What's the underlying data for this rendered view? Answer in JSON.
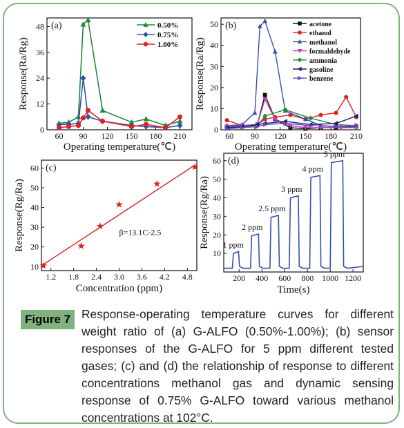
{
  "figure": {
    "label": "Figure 7",
    "caption": "Response-operating temperature curves for different weight ratio of (a) G-ALFO (0.50%-1.00%); (b) sensor responses of the G-ALFO for 5 ppm different tested gases; (c) and (d) the relationship of response to different concentrations methanol gas and dynamic sensing response of 0.75% G-ALFO toward various methanol concentrations at 102°C."
  },
  "chart_data": [
    {
      "panel": "(a)",
      "type": "line",
      "xlabel": "Operating temperature(℃)",
      "ylabel": "Response(Ra/Rg)",
      "xlim": [
        45,
        225
      ],
      "ylim": [
        0,
        52
      ],
      "xticks": [
        60,
        90,
        120,
        150,
        180,
        210
      ],
      "yticks": [
        0,
        12,
        24,
        36,
        48
      ],
      "legend_position": "top-right",
      "series": [
        {
          "name": "0.50%",
          "color": "#1e8a3a",
          "marker": "triangle-up",
          "x": [
            60,
            72,
            84,
            90,
            96,
            114,
            150,
            168,
            192,
            210
          ],
          "y": [
            3,
            3.5,
            6,
            49,
            51,
            9,
            3.5,
            5,
            2,
            4
          ]
        },
        {
          "name": "0.75%",
          "color": "#3050b0",
          "marker": "diamond",
          "x": [
            60,
            72,
            84,
            90,
            96,
            114,
            150,
            168,
            192,
            210
          ],
          "y": [
            2.5,
            2.5,
            3,
            24,
            6,
            4,
            2,
            1.5,
            1,
            2
          ]
        },
        {
          "name": "1.00%",
          "color": "#e02020",
          "marker": "circle",
          "x": [
            60,
            72,
            84,
            90,
            96,
            114,
            150,
            168,
            192,
            210
          ],
          "y": [
            1,
            1.5,
            2,
            5.5,
            9,
            4,
            1.5,
            2.5,
            1,
            6
          ]
        }
      ]
    },
    {
      "panel": "(b)",
      "type": "line",
      "xlabel": "Operating temperature(℃)",
      "ylabel": "Response(Ra/Rg)",
      "xlim": [
        50,
        215
      ],
      "ylim": [
        0,
        53
      ],
      "xticks": [
        60,
        90,
        120,
        150,
        180,
        210
      ],
      "yticks": [
        0,
        10,
        20,
        30,
        40,
        50
      ],
      "legend_position": "top-right",
      "series": [
        {
          "name": "acetone",
          "color": "#111111",
          "marker": "square",
          "x": [
            57,
            75,
            93,
            102,
            114,
            132,
            150,
            168,
            186,
            210
          ],
          "y": [
            1.5,
            2,
            2.5,
            16.5,
            5,
            1,
            0.5,
            1,
            1,
            1.5
          ]
        },
        {
          "name": "ethanol",
          "color": "#e02020",
          "marker": "circle",
          "x": [
            57,
            75,
            93,
            102,
            114,
            132,
            150,
            168,
            186,
            198,
            210
          ],
          "y": [
            4.5,
            2,
            2.5,
            5,
            6,
            7,
            5,
            7,
            8,
            15.5,
            6
          ]
        },
        {
          "name": "methanol",
          "color": "#3050b0",
          "marker": "triangle-up",
          "x": [
            57,
            75,
            90,
            96,
            102,
            114,
            126,
            150,
            168,
            192,
            210
          ],
          "y": [
            2,
            2.5,
            8,
            49,
            51.5,
            37,
            9,
            5,
            2,
            1.5,
            1.5
          ]
        },
        {
          "name": "formaldehyde",
          "color": "#c040c0",
          "marker": "triangle-down",
          "x": [
            57,
            75,
            93,
            102,
            114,
            132,
            150,
            168,
            192,
            210
          ],
          "y": [
            1.5,
            2,
            2.5,
            14.5,
            5,
            2,
            1,
            1,
            1,
            1
          ]
        },
        {
          "name": "ammonia",
          "color": "#1e8a3a",
          "marker": "diamond",
          "x": [
            57,
            75,
            93,
            102,
            126,
            156,
            186,
            210
          ],
          "y": [
            1,
            1.5,
            2,
            6.5,
            9.5,
            5.5,
            2.5,
            2
          ]
        },
        {
          "name": "gasoline",
          "color": "#1a1a6e",
          "marker": "triangle-left",
          "x": [
            57,
            75,
            93,
            102,
            126,
            156,
            186,
            210
          ],
          "y": [
            1,
            1.5,
            2.5,
            3,
            4,
            2.5,
            3,
            6.5
          ]
        },
        {
          "name": "benzene",
          "color": "#7040c0",
          "marker": "triangle-right",
          "x": [
            57,
            75,
            93,
            102,
            126,
            156,
            186,
            210
          ],
          "y": [
            0.5,
            1,
            1.5,
            2.5,
            3,
            2,
            1.5,
            2
          ]
        }
      ]
    },
    {
      "panel": "(c)",
      "type": "scatter",
      "xlabel": "Concentration (ppm)",
      "ylabel": "Response(Rg/Ra)",
      "xlim": [
        0.95,
        5.05
      ],
      "ylim": [
        8,
        64
      ],
      "xticks": [
        1.2,
        1.8,
        2.4,
        3.0,
        3.6,
        4.2,
        4.8
      ],
      "yticks": [
        10,
        20,
        30,
        40,
        50,
        60
      ],
      "fit_label": "β=13.1C-2.5",
      "x": [
        1,
        2,
        2.5,
        3,
        4,
        5
      ],
      "y": [
        10.5,
        20.5,
        30.5,
        41.5,
        52,
        60.5
      ],
      "fit": {
        "slope": 13.1,
        "intercept": -2.5
      }
    },
    {
      "panel": "(d)",
      "type": "line",
      "xlabel": "Time(s)",
      "ylabel": "Response(Rg/Ra)",
      "xlim": [
        65,
        1290
      ],
      "ylim": [
        0,
        64
      ],
      "xticks": [
        200,
        400,
        600,
        800,
        1000,
        1200
      ],
      "yticks": [
        10,
        20,
        30,
        40,
        50,
        60
      ],
      "annotations": [
        "1 ppm",
        "2 ppm",
        "2.5 ppm",
        "3 ppm",
        "4 ppm",
        "5 ppm"
      ],
      "pulses": [
        {
          "label": "1 ppm",
          "start": 150,
          "end": 195,
          "level": 11
        },
        {
          "label": "2 ppm",
          "start": 310,
          "end": 370,
          "level": 20.5
        },
        {
          "label": "2.5 ppm",
          "start": 480,
          "end": 545,
          "level": 30.5
        },
        {
          "label": "3 ppm",
          "start": 650,
          "end": 720,
          "level": 41
        },
        {
          "label": "4 ppm",
          "start": 830,
          "end": 910,
          "level": 52
        },
        {
          "label": "5 ppm",
          "start": 1010,
          "end": 1110,
          "level": 60
        }
      ],
      "baseline": 2
    }
  ]
}
